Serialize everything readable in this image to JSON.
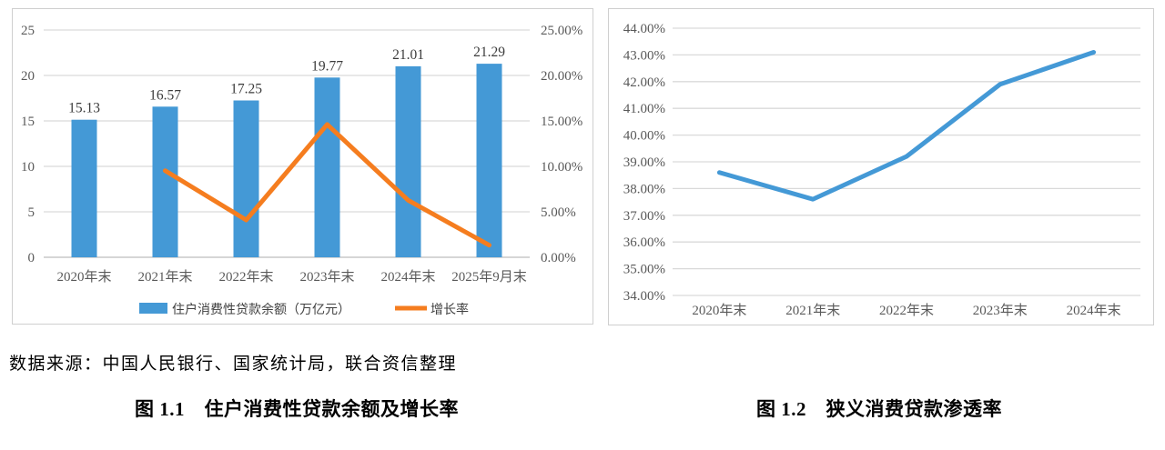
{
  "page": {
    "source_note": "数据来源：中国人民银行、国家统计局，联合资信整理",
    "captions": {
      "fig1": "图 1.1　住户消费性贷款余额及增长率",
      "fig2": "图 1.2　狭义消费贷款渗透率"
    }
  },
  "colors": {
    "bar_blue": "#4499D6",
    "line_orange": "#F57D1F",
    "line_blue": "#4499D6",
    "grid": "#D9D9D9",
    "zero_line": "#BDBDBD",
    "axis_text": "#595959",
    "value_label_text": "#3B3B3B",
    "legend_text": "#404040",
    "panel_border": "#CFCFCF"
  },
  "chart_data": [
    {
      "type": "bar",
      "title": "住户消费性贷款余额及增长率",
      "categories": [
        "2020年末",
        "2021年末",
        "2022年末",
        "2023年末",
        "2024年末",
        "2025年9月末"
      ],
      "series": [
        {
          "name": "住户消费性贷款余额（万亿元）",
          "type": "bar",
          "axis": "left",
          "values": [
            15.13,
            16.57,
            17.25,
            19.77,
            21.01,
            21.29
          ],
          "data_labels": [
            "15.13",
            "16.57",
            "17.25",
            "19.77",
            "21.01",
            "21.29"
          ]
        },
        {
          "name": "增长率",
          "type": "line",
          "axis": "right",
          "values": [
            null,
            9.52,
            4.1,
            14.61,
            6.27,
            1.33
          ]
        }
      ],
      "left_axis": {
        "min": 0,
        "max": 25,
        "step": 5,
        "ticks": [
          "0",
          "5",
          "10",
          "15",
          "20",
          "25"
        ]
      },
      "right_axis": {
        "min": 0,
        "max": 25,
        "step": 5,
        "ticks": [
          "0.00%",
          "5.00%",
          "10.00%",
          "15.00%",
          "20.00%",
          "25.00%"
        ]
      },
      "legend": [
        "住户消费性贷款余额（万亿元）",
        "增长率"
      ],
      "legend_position": "bottom",
      "grid": true
    },
    {
      "type": "line",
      "title": "狭义消费贷款渗透率",
      "categories": [
        "2020年末",
        "2021年末",
        "2022年末",
        "2023年末",
        "2024年末"
      ],
      "series": [
        {
          "name": "狭义消费贷款渗透率",
          "type": "line",
          "values": [
            38.6,
            37.6,
            39.2,
            41.9,
            43.1
          ]
        }
      ],
      "y_axis": {
        "min": 34,
        "max": 44,
        "step": 1,
        "ticks": [
          "34.00%",
          "35.00%",
          "36.00%",
          "37.00%",
          "38.00%",
          "39.00%",
          "40.00%",
          "41.00%",
          "42.00%",
          "43.00%",
          "44.00%"
        ]
      },
      "legend_position": "none",
      "grid": true
    }
  ]
}
